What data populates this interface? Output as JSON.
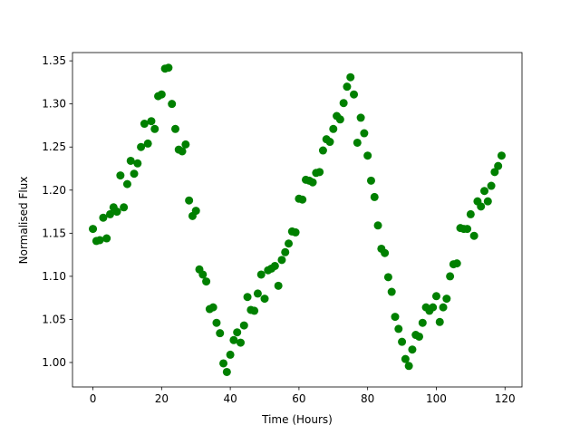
{
  "chart_data": {
    "type": "scatter",
    "xlabel": "Time (Hours)",
    "ylabel": "Normalised Flux",
    "series": [
      {
        "color": "#008000",
        "x": [
          0,
          1,
          2,
          3,
          4,
          5,
          6,
          7,
          8,
          9,
          10,
          11,
          12,
          13,
          14,
          15,
          16,
          17,
          18,
          19,
          20,
          21,
          22,
          23,
          24,
          25,
          26,
          27,
          28,
          29,
          30,
          31,
          32,
          33,
          34,
          35,
          36,
          37,
          38,
          39,
          40,
          41,
          42,
          43,
          44,
          45,
          46,
          47,
          48,
          49,
          50,
          51,
          52,
          53,
          54,
          55,
          56,
          57,
          58,
          59,
          60,
          61,
          62,
          63,
          64,
          65,
          66,
          67,
          68,
          69,
          70,
          71,
          72,
          73,
          74,
          75,
          76,
          77,
          78,
          79,
          80,
          81,
          82,
          83,
          84,
          85,
          86,
          87,
          88,
          89,
          90,
          91,
          92,
          93,
          94,
          95,
          96,
          97,
          98,
          99,
          100,
          101,
          102,
          103,
          104,
          105,
          106,
          107,
          108,
          109,
          110,
          111,
          112,
          113,
          114,
          115,
          116,
          117,
          118,
          119
        ],
        "values": [
          1.155,
          1.141,
          1.142,
          1.168,
          1.144,
          1.172,
          1.18,
          1.175,
          1.217,
          1.18,
          1.207,
          1.234,
          1.219,
          1.231,
          1.25,
          1.277,
          1.254,
          1.28,
          1.271,
          1.309,
          1.311,
          1.341,
          1.342,
          1.3,
          1.271,
          1.247,
          1.245,
          1.253,
          1.188,
          1.17,
          1.176,
          1.108,
          1.102,
          1.094,
          1.062,
          1.064,
          1.046,
          1.034,
          0.999,
          0.989,
          1.009,
          1.026,
          1.035,
          1.023,
          1.043,
          1.076,
          1.061,
          1.06,
          1.08,
          1.102,
          1.074,
          1.107,
          1.109,
          1.112,
          1.089,
          1.119,
          1.128,
          1.138,
          1.152,
          1.151,
          1.19,
          1.189,
          1.212,
          1.211,
          1.209,
          1.22,
          1.221,
          1.246,
          1.259,
          1.256,
          1.271,
          1.286,
          1.282,
          1.301,
          1.32,
          1.331,
          1.311,
          1.255,
          1.284,
          1.266,
          1.24,
          1.211,
          1.192,
          1.159,
          1.132,
          1.127,
          1.099,
          1.082,
          1.053,
          1.039,
          1.024,
          1.004,
          0.996,
          1.015,
          1.032,
          1.03,
          1.046,
          1.064,
          1.06,
          1.064,
          1.077,
          1.047,
          1.064,
          1.074,
          1.1,
          1.114,
          1.115,
          1.156,
          1.155,
          1.155,
          1.172,
          1.147,
          1.187,
          1.181,
          1.199,
          1.187,
          1.205,
          1.221,
          1.228,
          1.24
        ]
      }
    ],
    "xlim": [
      -5.95,
      124.95
    ],
    "xticks": [
      0,
      20,
      40,
      60,
      80,
      100,
      120
    ],
    "ylim": [
      0.9716,
      1.3596
    ],
    "yticks": [
      {
        "value": 1.0,
        "label": "1.00"
      },
      {
        "value": 1.05,
        "label": "1.05"
      },
      {
        "value": 1.1,
        "label": "1.10"
      },
      {
        "value": 1.15,
        "label": "1.15"
      },
      {
        "value": 1.2,
        "label": "1.20"
      },
      {
        "value": 1.25,
        "label": "1.25"
      },
      {
        "value": 1.3,
        "label": "1.30"
      },
      {
        "value": 1.35,
        "label": "1.35"
      }
    ],
    "grid": false
  }
}
